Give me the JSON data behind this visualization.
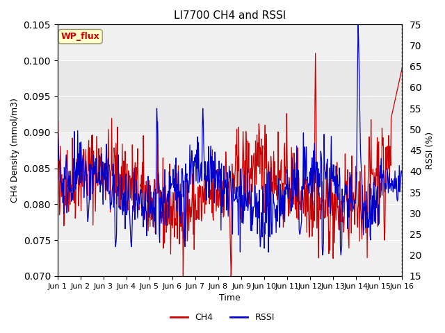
{
  "title": "LI7700 CH4 and RSSI",
  "xlabel": "Time",
  "ylabel_left": "CH4 Density (mmol/m3)",
  "ylabel_right": "RSSI (%)",
  "site_label": "WP_flux",
  "ylim_left": [
    0.07,
    0.105
  ],
  "ylim_right": [
    15,
    75
  ],
  "yticks_left": [
    0.07,
    0.075,
    0.08,
    0.085,
    0.09,
    0.095,
    0.1,
    0.105
  ],
  "yticks_right": [
    15,
    20,
    25,
    30,
    35,
    40,
    45,
    50,
    55,
    60,
    65,
    70,
    75
  ],
  "xtick_labels": [
    "Jun 1",
    "Jun 2",
    "Jun 3",
    "Jun 4",
    "Jun 5",
    "Jun 6",
    "Jun 7",
    "Jun 8",
    "Jun 9",
    "Jun 10",
    "Jun 11",
    "Jun 12",
    "Jun 13",
    "Jun 14",
    "Jun 15",
    "Jun 16"
  ],
  "shade_band": [
    0.09,
    0.1
  ],
  "ch4_color": "#cc0000",
  "rssi_color": "#0000cc",
  "bg_color": "#f0f0f0",
  "site_label_bg": "#ffffcc",
  "site_label_color": "#cc0000",
  "legend_ch4": "CH4",
  "legend_rssi": "RSSI"
}
